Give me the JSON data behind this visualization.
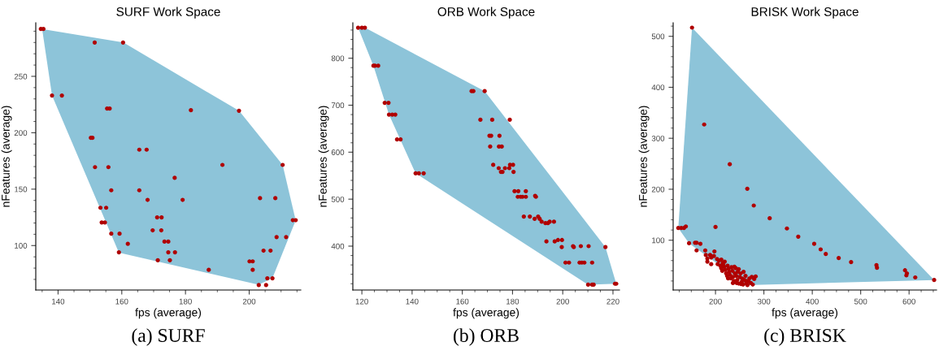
{
  "chart_data": [
    {
      "type": "scatter",
      "title": "SURF Work Space",
      "xlabel": "fps (average)",
      "ylabel": "nFeatures (average)",
      "annotations": [
        "(a) SURF"
      ],
      "xlim": [
        133,
        216.2
      ],
      "ylim": [
        60.6,
        297.5
      ],
      "xticks": [
        140,
        160,
        180,
        200
      ],
      "yticks": [
        100,
        150,
        200,
        250
      ],
      "grid": false,
      "legend": false,
      "series": [
        {
          "type": "area",
          "color": "#8dc4d9",
          "x": [
            135,
            160.5,
            196.8,
            210.5,
            214.6,
            207.3,
            203,
            159.1,
            138.1
          ],
          "values": [
            292,
            280,
            219.5,
            171.5,
            122.3,
            71.2,
            65.2,
            93.8,
            233
          ]
        },
        {
          "marker": "circle",
          "color": "#b00000",
          "x": [
            134.6,
            135.4,
            151.5,
            160.4,
            138.1,
            141.2,
            155.4,
            156.2,
            181.7,
            196.8,
            150.3,
            150.8,
            165.5,
            167.8,
            151.6,
            155.8,
            191.6,
            210.5,
            176.6,
            156.7,
            165.5,
            168.1,
            179.1,
            203.4,
            208.2,
            153.3,
            155.1,
            171.1,
            172.5,
            213.7,
            214.6,
            153.7,
            154.7,
            156.7,
            159.3,
            169.7,
            172.4,
            208.6,
            211.6,
            161.9,
            173.4,
            174.6,
            159.1,
            174.6,
            176.7,
            204.5,
            206.7,
            171.3,
            175.1,
            200.1,
            201.1,
            187.3,
            201.1,
            205.7,
            207.3,
            203,
            205.3
          ],
          "values": [
            292,
            292,
            280,
            280,
            233,
            233,
            221.5,
            221.5,
            220,
            219.5,
            195.5,
            195.5,
            185,
            185,
            169.5,
            169.5,
            171.5,
            171.5,
            160,
            149,
            149,
            140.5,
            140.5,
            142,
            142,
            133.5,
            133.5,
            125,
            125,
            122.5,
            122.5,
            120.5,
            120.5,
            110.5,
            110.5,
            113.5,
            113.5,
            107.5,
            107.5,
            101.5,
            103.5,
            103.5,
            94,
            94,
            94,
            95.5,
            95.5,
            87,
            87,
            86,
            86,
            78.5,
            78.5,
            71,
            71,
            65,
            65
          ]
        }
      ]
    },
    {
      "type": "scatter",
      "title": "ORB Work Space",
      "xlabel": "fps (average)",
      "ylabel": "nFeatures (average)",
      "annotations": [
        "(b) ORB"
      ],
      "xlim": [
        116.4,
        222.6
      ],
      "ylim": [
        306.6,
        875.5
      ],
      "xticks": [
        120,
        140,
        160,
        180,
        200,
        220
      ],
      "yticks": [
        400,
        500,
        600,
        700,
        800
      ],
      "grid": false,
      "legend": false,
      "series": [
        {
          "type": "area",
          "color": "#8dc4d9",
          "x": [
            118.5,
            121.2,
            168.9,
            217,
            221.3,
            210.1,
            141.4,
            130.8,
            124.6
          ],
          "values": [
            865,
            865,
            730,
            398,
            320,
            318,
            555,
            680,
            784
          ]
        },
        {
          "marker": "circle",
          "color": "#b00000",
          "x": [
            118.5,
            120,
            121.2,
            124.6,
            125.2,
            126.5,
            129.1,
            130.6,
            130.8,
            132.1,
            133.3,
            134,
            135.4,
            141.4,
            142.7,
            144.6,
            163.7,
            164.4,
            168.9,
            167.2,
            171.9,
            178.9,
            170.8,
            171.5,
            174.8,
            171.1,
            174.6,
            175.7,
            172.3,
            179,
            180.2,
            174.5,
            177,
            178.7,
            175.4,
            176,
            180.4,
            180.8,
            182.3,
            185.3,
            182.1,
            183.2,
            184,
            185.3,
            189,
            189.3,
            184.5,
            186.9,
            190.2,
            188.8,
            190.8,
            191.6,
            193.1,
            194.1,
            194.8,
            196.5,
            193.5,
            196.8,
            198.1,
            199.7,
            199.6,
            204.1,
            204.4,
            207.2,
            210.3,
            217,
            201.1,
            202.5,
            206.7,
            207.6,
            208.6,
            211.7,
            210.1,
            211.7,
            212.3,
            220.8,
            221.3
          ],
          "values": [
            865,
            865,
            865,
            784,
            784,
            784,
            705,
            705,
            680,
            680,
            680,
            627,
            627,
            555,
            555,
            555,
            730,
            730,
            730,
            669,
            669,
            669,
            635,
            635,
            635,
            612,
            612,
            612,
            573,
            573,
            573,
            566,
            566,
            566,
            558,
            558,
            558,
            517,
            517,
            517,
            505,
            505,
            505,
            505,
            507,
            505,
            463,
            463,
            463,
            458,
            458,
            452,
            449,
            449,
            452,
            452,
            410,
            410,
            413,
            413,
            398,
            400,
            398,
            400,
            400,
            398,
            365,
            365,
            365,
            365,
            365,
            365,
            318,
            318,
            318,
            320,
            320
          ]
        }
      ]
    },
    {
      "type": "scatter",
      "title": "BRISK Work Space",
      "xlabel": "fps (average)",
      "ylabel": "nFeatures (average)",
      "annotations": [
        "(c) BRISK"
      ],
      "xlim": [
        112.5,
        656.8
      ],
      "ylim": [
        2.3,
        526.6
      ],
      "xticks": [
        200,
        300,
        400,
        500,
        600
      ],
      "yticks": [
        100,
        200,
        300,
        400,
        500
      ],
      "grid": false,
      "legend": false,
      "series": [
        {
          "type": "area",
          "color": "#8dc4d9",
          "x": [
            151.5,
            651.8,
            266,
            145.4,
            123.1
          ],
          "values": [
            517,
            22,
            12,
            94,
            124
          ]
        },
        {
          "marker": "circle",
          "color": "#b00000",
          "x": [
            151.5,
            176.6,
            229.5,
            265.7,
            279.1,
            312,
            347.6,
            371,
            403.9,
            417.3,
            427.9,
            454.6,
            480.2,
            532.6,
            533.7,
            591.6,
            594.4,
            595.5,
            612.8,
            651.8,
            200,
            123.1,
            129.2,
            134.8,
            138.7,
            145.4,
            157.7,
            161,
            168.8,
            160.9,
            178.8,
            180,
            188.9,
            196.7,
            197.8,
            191.1,
            183.2,
            183.2,
            191.1,
            203.3,
            207.2,
            204.5,
            210,
            212,
            214,
            215,
            218,
            220,
            222,
            224,
            225,
            227,
            228,
            230,
            232,
            233,
            235,
            236,
            238,
            240,
            242,
            243,
            245,
            246,
            248,
            250,
            252,
            254,
            255,
            257,
            258,
            260,
            262,
            264,
            266,
            268,
            270,
            273,
            275,
            277,
            280,
            283,
            226,
            216,
            219,
            212,
            239,
            248,
            253,
            263,
            236,
            244
          ],
          "values": [
            517,
            327,
            249,
            201,
            168,
            143,
            123,
            107,
            93,
            82,
            73,
            65,
            57,
            51,
            46,
            41,
            31,
            35,
            27,
            22,
            126,
            124,
            124,
            124,
            127,
            94,
            95,
            95,
            93,
            80,
            80,
            71,
            71,
            69,
            78,
            66,
            64,
            58,
            53,
            63,
            60,
            53,
            50,
            45,
            40,
            55,
            48,
            42,
            35,
            30,
            50,
            44,
            38,
            32,
            25,
            47,
            40,
            28,
            20,
            35,
            45,
            30,
            22,
            38,
            15,
            28,
            35,
            18,
            25,
            13,
            38,
            22,
            30,
            15,
            12,
            20,
            25,
            16,
            28,
            13,
            24,
            29,
            25,
            52,
            58,
            62,
            48,
            43,
            14,
            20,
            16,
            16
          ]
        }
      ]
    }
  ]
}
